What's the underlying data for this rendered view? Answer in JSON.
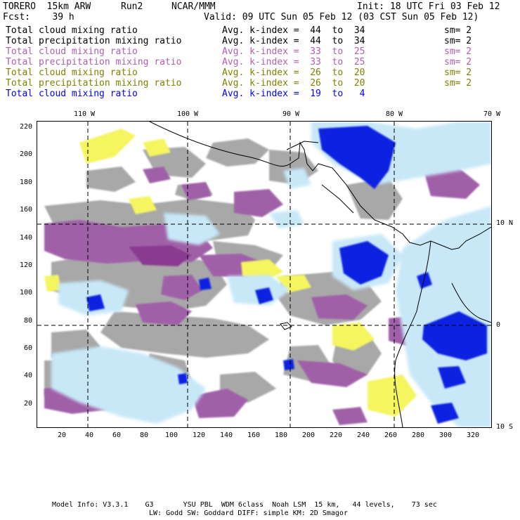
{
  "header": {
    "model": "TORERO  15km ARW",
    "run": "Run2",
    "org": "NCAR/MMM",
    "init": "Init: 18 UTC Fri 03 Feb 12",
    "fcst": "Fcst:    39 h",
    "valid": "Valid: 09 UTC Sun 05 Feb 12 (03 CST Sun 05 Feb 12)"
  },
  "legend": [
    {
      "field": "Total cloud mixing ratio",
      "stat": "Avg. k-index =  44  to  34",
      "sm": "sm= 2",
      "color": "#000000"
    },
    {
      "field": "Total precipitation mixing ratio",
      "stat": "Avg. k-index =  44  to  34",
      "sm": "sm= 2",
      "color": "#000000"
    },
    {
      "field": "Total cloud mixing ratio",
      "stat": "Avg. k-index =  33  to  25",
      "sm": "sm= 2",
      "color": "#b060b0"
    },
    {
      "field": "Total precipitation mixing ratio",
      "stat": "Avg. k-index =  33  to  25",
      "sm": "sm= 2",
      "color": "#b060b0"
    },
    {
      "field": "Total cloud mixing ratio",
      "stat": "Avg. k-index =  26  to  20",
      "sm": "sm= 2",
      "color": "#808000"
    },
    {
      "field": "Total precipitation mixing ratio",
      "stat": "Avg. k-index =  26  to  20",
      "sm": "sm= 2",
      "color": "#808000"
    },
    {
      "field": "Total cloud mixing ratio",
      "stat": "Avg. k-index =  19  to   4",
      "sm": "",
      "color": "#0000ff"
    }
  ],
  "map": {
    "lon_labels": [
      "110 W",
      "100 W",
      "90 W",
      "80 W",
      "70 W"
    ],
    "lat_labels": [
      "10 N",
      "0",
      "10 S"
    ],
    "x_ticks": [
      "20",
      "40",
      "60",
      "80",
      "100",
      "120",
      "140",
      "160",
      "180",
      "200",
      "220",
      "240",
      "260",
      "280",
      "300",
      "320"
    ],
    "y_ticks": [
      "220",
      "200",
      "180",
      "160",
      "140",
      "120",
      "100",
      "80",
      "60",
      "40",
      "20"
    ],
    "colors": {
      "gray": "#a8a8a8",
      "purple": "#a060a8",
      "yellow": "#f5f560",
      "lightblue": "#c8e8f8",
      "blue": "#1020e0"
    }
  },
  "footer": {
    "line1": "Model Info: V3.3.1    G3       YSU PBL  WDM 6class  Noah LSM  15 km,   44 levels,    73 sec",
    "line2": "LW: Godd SW: Goddard DIFF: simple KM: 2D Smagor"
  }
}
